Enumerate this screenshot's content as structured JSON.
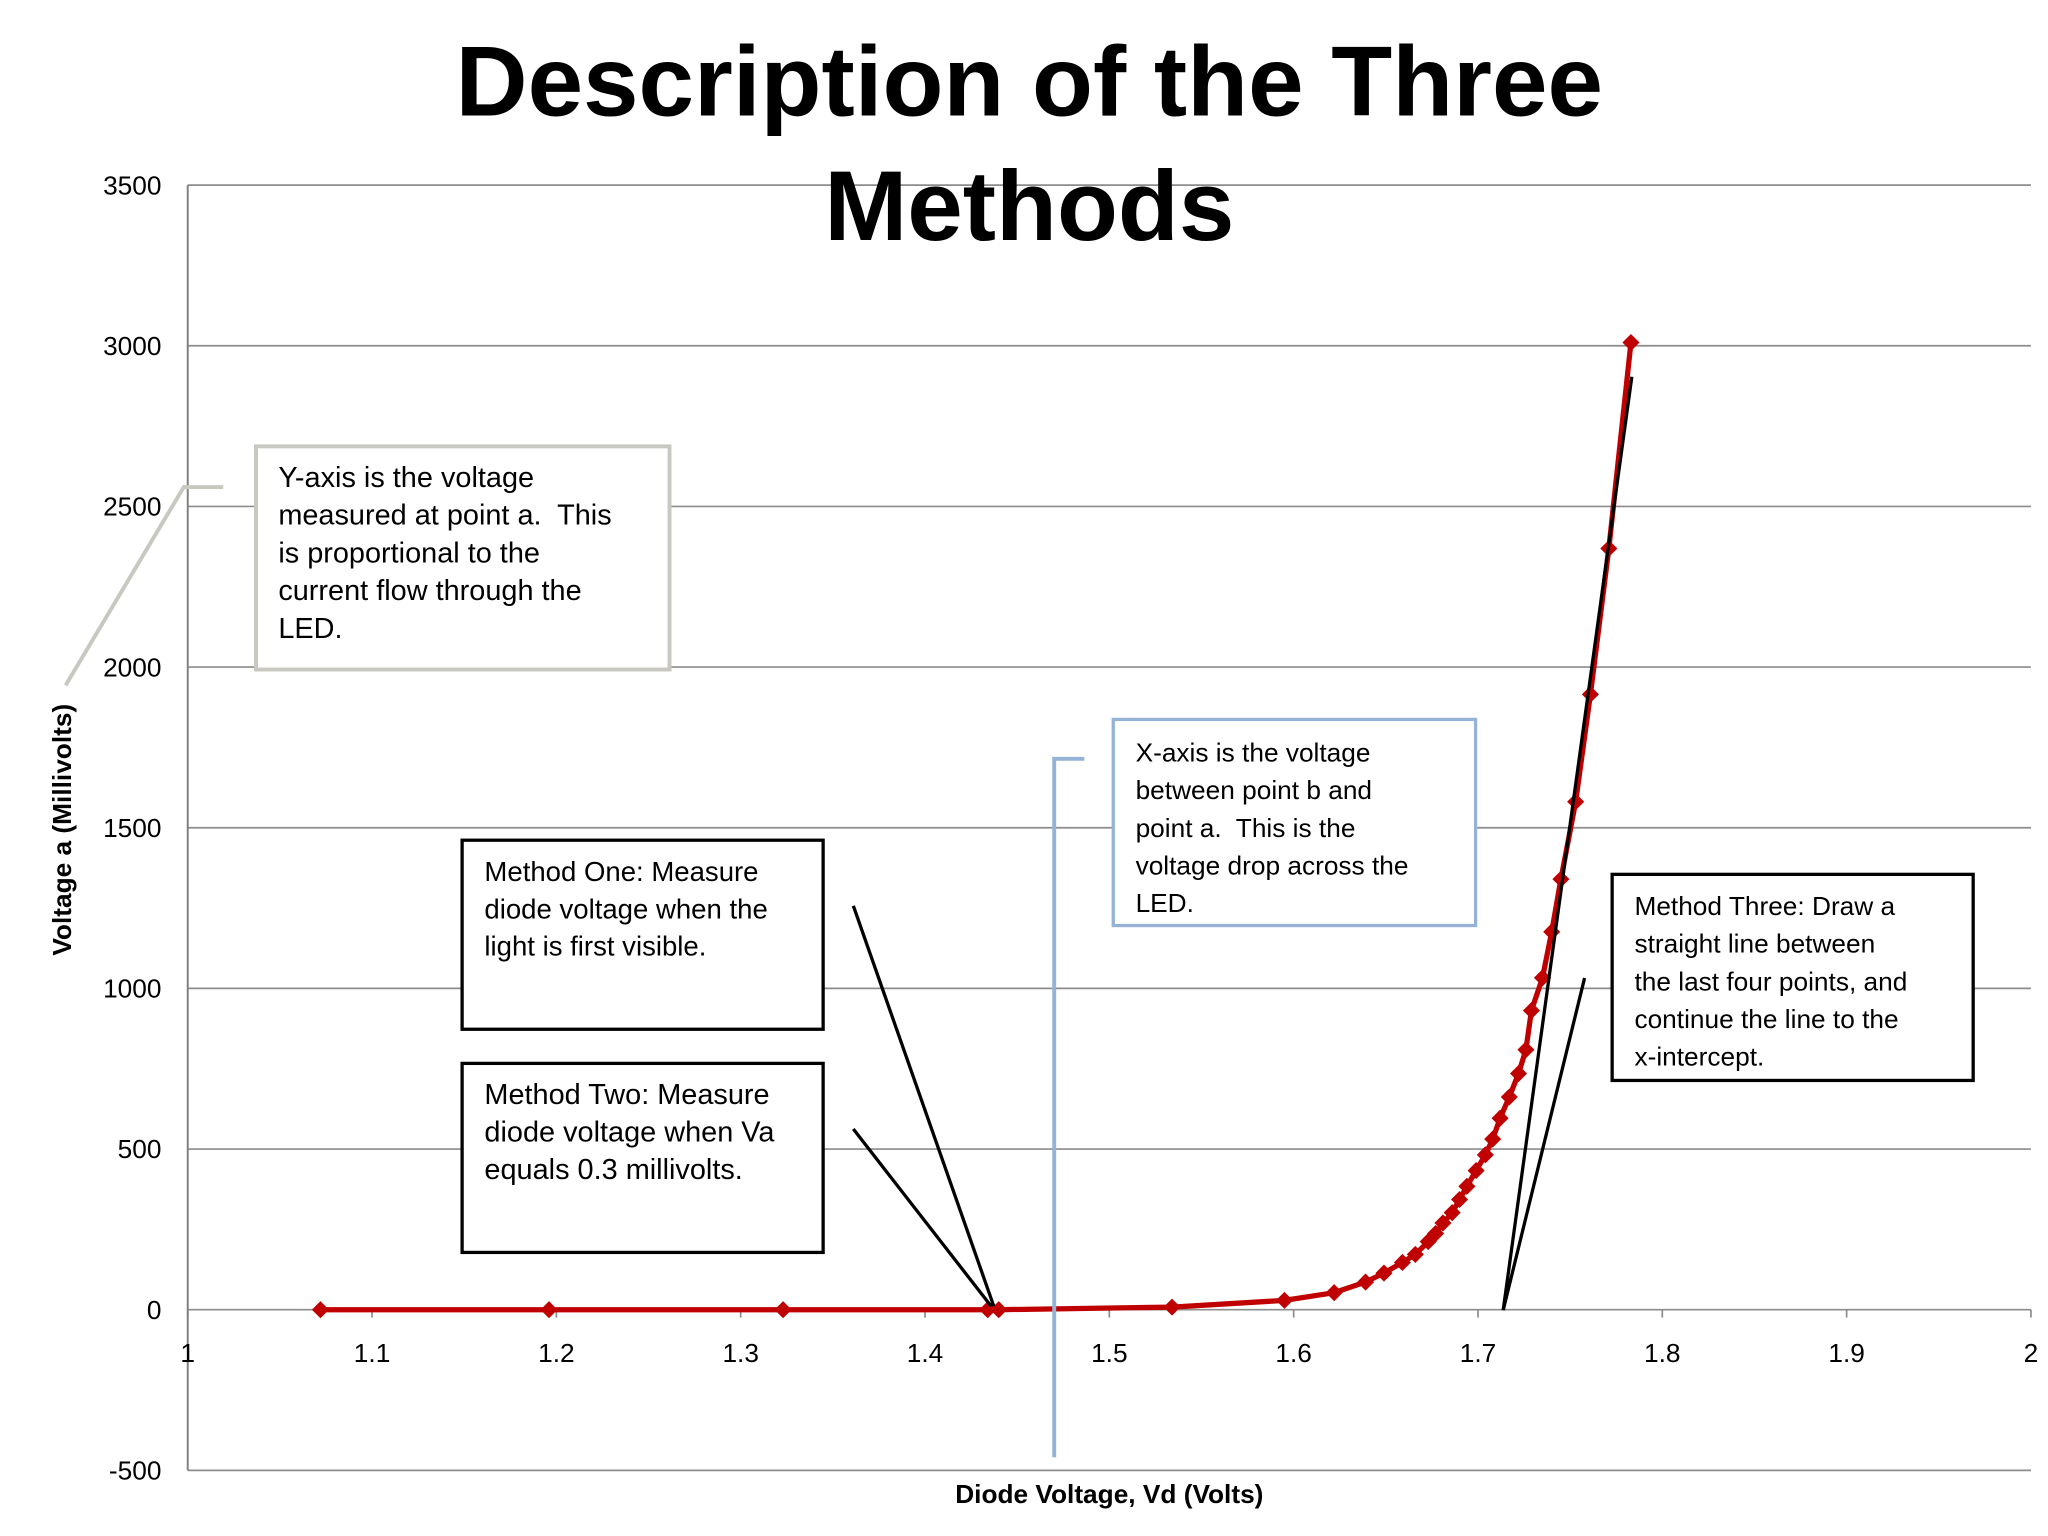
{
  "chart_data": {
    "type": "line",
    "title_lines": [
      "Description of the Three",
      "Methods"
    ],
    "xlabel": "Diode Voltage, Vd (Volts)",
    "ylabel": "Voltage a (Millivolts)",
    "xlim": [
      1,
      2
    ],
    "xticks": [
      1,
      1.1,
      1.2,
      1.3,
      1.4,
      1.5,
      1.6,
      1.7,
      1.8,
      1.9,
      2
    ],
    "ylim": [
      -500,
      3500
    ],
    "yticks": [
      -500,
      0,
      500,
      1000,
      1500,
      2000,
      2500,
      3000,
      3500
    ],
    "grid": true,
    "series": [
      {
        "name": "Voltage a",
        "color": "#c00000",
        "x": [
          1.072,
          1.196,
          1.323,
          1.434,
          1.44,
          1.534,
          1.595,
          1.622,
          1.639,
          1.649,
          1.659,
          1.666,
          1.673,
          1.677,
          1.681,
          1.686,
          1.69,
          1.694,
          1.699,
          1.704,
          1.708,
          1.712,
          1.717,
          1.722,
          1.726,
          1.729,
          1.735,
          1.74,
          1.745,
          1.753,
          1.761,
          1.771,
          1.783
        ],
        "values": [
          0,
          0,
          0,
          0,
          0,
          8,
          29,
          53,
          86,
          114,
          147,
          172,
          212,
          237,
          270,
          302,
          343,
          384,
          433,
          482,
          531,
          596,
          662,
          735,
          809,
          931,
          1033,
          1176,
          1340,
          1581,
          1915,
          2369,
          3010
        ]
      }
    ],
    "annotations": [
      {
        "lines": [
          "Y-axis is the voltage",
          "measured at point a.  This",
          "is proportional to the",
          "current flow through the",
          "LED."
        ]
      },
      {
        "lines": [
          "X-axis is the voltage",
          "between point b and",
          "point a.  This is the",
          "voltage drop across the",
          "LED."
        ]
      },
      {
        "lines": [
          "Method One: Measure",
          "diode voltage when the",
          "light is first visible."
        ]
      },
      {
        "lines": [
          "Method Two: Measure",
          "diode voltage when Va",
          "equals 0.3 millivolts."
        ]
      },
      {
        "lines": [
          "Method Three: Draw a",
          "straight line between",
          "the last four points, and",
          "continue the line to the",
          "x-intercept."
        ]
      }
    ]
  }
}
